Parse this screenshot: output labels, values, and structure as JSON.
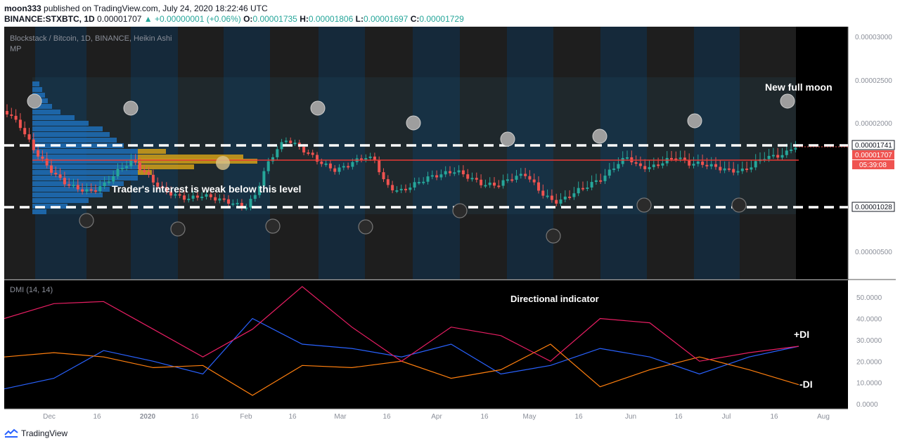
{
  "header": {
    "author": "moon333",
    "published": "published on TradingView.com, July 24, 2020 18:22:46 UTC",
    "symbol": "BINANCE:STXBTC, 1D",
    "last": "0.00001707",
    "change": "▲ +0.00000001 (+0.06%)",
    "o_label": "O:",
    "o": "0.00001735",
    "h_label": "H:",
    "h": "0.00001806",
    "l_label": "L:",
    "l": "0.00001697",
    "c_label": "C:",
    "c": "0.00001729"
  },
  "price_pane": {
    "title": "Blockstack / Bitcoin, 1D, BINANCE, Heikin Ashi",
    "indicator": "MP",
    "y_ticks": [
      "0.00003000",
      "0.00002500",
      "0.00002000",
      "0.00000500"
    ],
    "price_labels": {
      "upper": "0.00001741",
      "current": "0.00001707",
      "timer": "05:39:08",
      "lower": "0.00001028"
    },
    "annotations": {
      "full_moon": "New full moon",
      "weak": "Trader's interest is weak below this level"
    }
  },
  "dmi_pane": {
    "title": "DMI (14, 14)",
    "label": "Directional indicator",
    "plus_di": "+DI",
    "minus_di": "-DI",
    "y_ticks": [
      "50.0000",
      "40.0000",
      "30.0000",
      "20.0000",
      "10.0000",
      "0.0000"
    ]
  },
  "x_axis": [
    "Dec",
    "16",
    "2020",
    "16",
    "Feb",
    "16",
    "Mar",
    "16",
    "Apr",
    "16",
    "May",
    "16",
    "Jun",
    "16",
    "Jul",
    "16",
    "Aug"
  ],
  "footer": {
    "brand": "TradingView"
  },
  "colors": {
    "up": "#26a69a",
    "down": "#ef5350",
    "plus_di": "#2962ff",
    "minus_di": "#ff7f0e",
    "adx": "#e91e63"
  },
  "chart_data": [
    {
      "type": "line",
      "title": "DMI (14, 14)",
      "x": [
        "Dec",
        "Dec 16",
        "2020",
        "Jan 16",
        "Feb",
        "Feb 16",
        "Mar",
        "Mar 16",
        "Apr",
        "Apr 16",
        "May",
        "May 16",
        "Jun",
        "Jun 16",
        "Jul",
        "Jul 16",
        "Jul 24"
      ],
      "series": [
        {
          "name": "+DI",
          "values": [
            7,
            12,
            25,
            20,
            14,
            40,
            28,
            26,
            22,
            28,
            14,
            18,
            26,
            22,
            14,
            22,
            27
          ]
        },
        {
          "name": "-DI",
          "values": [
            22,
            24,
            22,
            17,
            18,
            4,
            18,
            17,
            20,
            12,
            16,
            28,
            8,
            16,
            22,
            16,
            9
          ]
        },
        {
          "values": [
            40,
            47,
            48,
            35,
            22,
            35,
            55,
            36,
            20,
            36,
            32,
            20,
            40,
            38,
            20,
            24,
            27
          ]
        }
      ],
      "ylim": [
        0,
        55
      ]
    }
  ]
}
